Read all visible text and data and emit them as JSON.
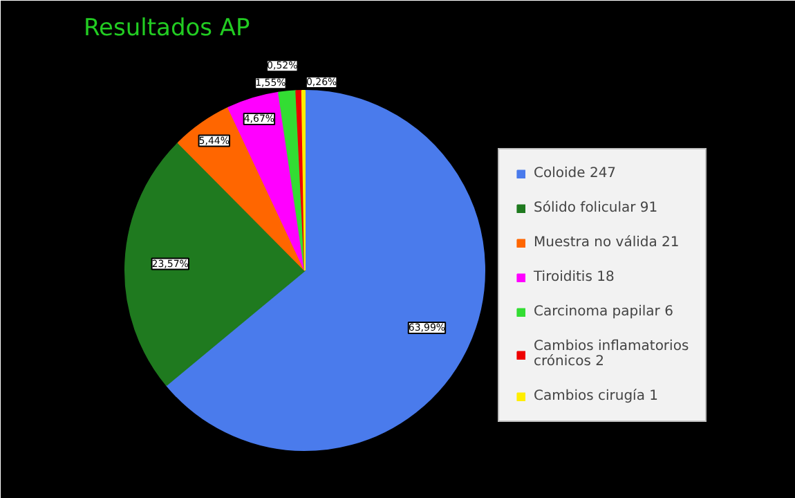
{
  "chart_data": {
    "type": "pie",
    "title": "Resultados AP",
    "categories": [
      "Coloide 247",
      "Sólido folicular 91",
      "Muestra no válida 21",
      "Tiroiditis 18",
      "Carcinoma papilar 6",
      "Cambios inflamatorios crónicos 2",
      "Cambios cirugía 1"
    ],
    "values": [
      63.99,
      23.57,
      5.44,
      4.67,
      1.55,
      0.52,
      0.26
    ],
    "value_labels": [
      "63,99%",
      "23,57%",
      "5,44%",
      "4,67%",
      "1,55%",
      "0,52%",
      "0,26%"
    ],
    "colors": [
      "#4a7bec",
      "#1f7a1f",
      "#ff6600",
      "#ff00ff",
      "#33dd33",
      "#ee0000",
      "#ffee00"
    ],
    "legend": "right"
  }
}
